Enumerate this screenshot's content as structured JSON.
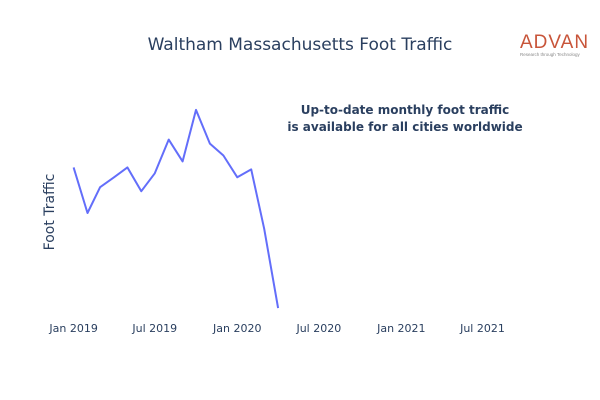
{
  "logo": {
    "text": "ADVAN",
    "tagline": "Research through Technology",
    "color": "#c8553a"
  },
  "annotation": {
    "line1": "Up-to-date monthly foot traffic",
    "line2": "is available for all cities worldwide"
  },
  "chart_data": {
    "type": "line",
    "title": "Waltham Massachusetts Foot Traffic",
    "xlabel": "",
    "ylabel": "Foot Traffic",
    "x_ticks": [
      "Jan 2019",
      "Jul 2019",
      "Jan 2020",
      "Jul 2020",
      "Jan 2021",
      "Jul 2021"
    ],
    "x_range": [
      "2018-12-15",
      "2021-10-15"
    ],
    "y_ticks_shown": false,
    "grid": false,
    "line_color": "#636efa",
    "series": [
      {
        "x": [
          "2019-01",
          "2019-02",
          "2019-03",
          "2019-04",
          "2019-05",
          "2019-06",
          "2019-07",
          "2019-08",
          "2019-09",
          "2019-10",
          "2019-11",
          "2019-12",
          "2020-01",
          "2020-02",
          "2020-03",
          "2020-04"
        ],
        "values": [
          76,
          53,
          66,
          71,
          76,
          64,
          73,
          90,
          79,
          105,
          88,
          82,
          71,
          75,
          45,
          5
        ]
      }
    ],
    "ylim": [
      0,
      110
    ]
  }
}
